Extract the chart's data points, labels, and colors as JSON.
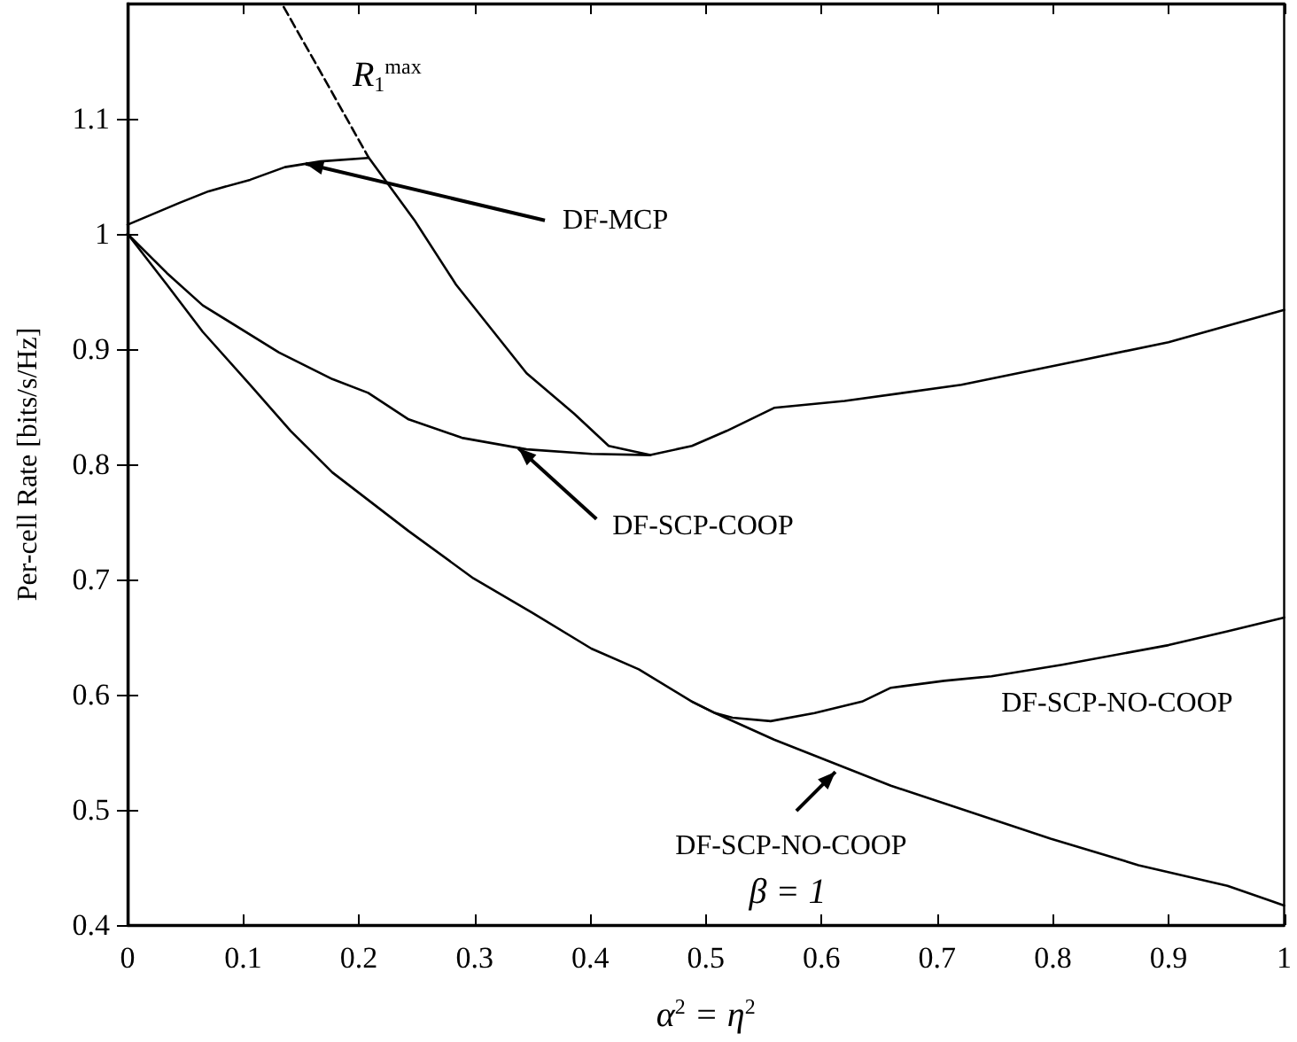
{
  "chart_data": {
    "type": "line",
    "xlabel": "α$^{2}$ = η$^{2}$",
    "ylabel": "Per-cell Rate [bits/s/Hz]",
    "xlim": [
      0,
      1
    ],
    "ylim": [
      0.4,
      1.2
    ],
    "xticks": [
      0,
      0.1,
      0.2,
      0.3,
      0.4,
      0.5,
      0.6,
      0.7,
      0.8,
      0.9,
      1
    ],
    "yticks": [
      0.4,
      0.5,
      0.6,
      0.7,
      0.8,
      0.9,
      1,
      1.1
    ],
    "grid": false,
    "marker": "none",
    "series": [
      {
        "color": "#000000",
        "line_style": "dashed",
        "x": [
          0.135,
          0.17,
          0.208
        ],
        "values": [
          1.197,
          1.135,
          1.067
        ]
      },
      {
        "color": "#000000",
        "line_style": "solid",
        "x": [
          0.208,
          0.248,
          0.284,
          0.345,
          0.386,
          0.416,
          0.452,
          0.488,
          0.518,
          0.559,
          0.62,
          0.721,
          0.823,
          0.9,
          1.0
        ],
        "values": [
          1.067,
          1.012,
          0.956,
          0.879,
          0.844,
          0.816,
          0.808,
          0.816,
          0.829,
          0.849,
          0.855,
          0.869,
          0.89,
          0.906,
          0.934
        ]
      },
      {
        "color": "#000000",
        "line_style": "solid",
        "x": [
          0,
          0.045,
          0.07,
          0.106,
          0.136,
          0.167,
          0.208
        ],
        "values": [
          1.008,
          1.027,
          1.037,
          1.047,
          1.058,
          1.063,
          1.066
        ]
      },
      {
        "color": "#000000",
        "line_style": "solid",
        "x": [
          0,
          0.034,
          0.065,
          0.131,
          0.177,
          0.208,
          0.243,
          0.289,
          0.345,
          0.401,
          0.452
        ],
        "values": [
          1.0,
          0.966,
          0.938,
          0.897,
          0.874,
          0.862,
          0.839,
          0.823,
          0.813,
          0.809,
          0.808
        ]
      },
      {
        "color": "#000000",
        "line_style": "solid",
        "x": [
          0,
          0.034,
          0.065,
          0.106,
          0.141,
          0.177,
          0.243,
          0.299,
          0.35,
          0.401,
          0.442,
          0.488,
          0.508,
          0.559,
          0.66,
          0.798,
          0.874,
          0.951,
          1.0
        ],
        "values": [
          1.0,
          0.956,
          0.915,
          0.869,
          0.829,
          0.793,
          0.742,
          0.701,
          0.671,
          0.64,
          0.622,
          0.594,
          0.584,
          0.561,
          0.521,
          0.475,
          0.452,
          0.434,
          0.417
        ]
      },
      {
        "color": "#000000",
        "line_style": "solid",
        "x": [
          0.488,
          0.508,
          0.523,
          0.556,
          0.594,
          0.635,
          0.66,
          0.706,
          0.747,
          0.808,
          0.9,
          0.951,
          1.0
        ],
        "values": [
          0.594,
          0.584,
          0.58,
          0.577,
          0.584,
          0.594,
          0.606,
          0.612,
          0.616,
          0.626,
          0.643,
          0.655,
          0.667
        ]
      }
    ],
    "annotations": [
      {
        "text": "R$_{1}$$^{max}$",
        "x": 0.17,
        "y": 1.135
      },
      {
        "text": "DF-MCP",
        "x": 0.154,
        "y": 1.061
      },
      {
        "text": "DF-SCP-COOP",
        "x": 0.338,
        "y": 0.814
      },
      {
        "text": "DF-SCP-NO-COOP",
        "x": 0.808,
        "y": 0.626
      },
      {
        "text": "DF-SCP-NO-COOP",
        "x": 0.612,
        "y": 0.533
      },
      {
        "text": "β = 1",
        "x": 0.612,
        "y": 0.533
      }
    ]
  }
}
